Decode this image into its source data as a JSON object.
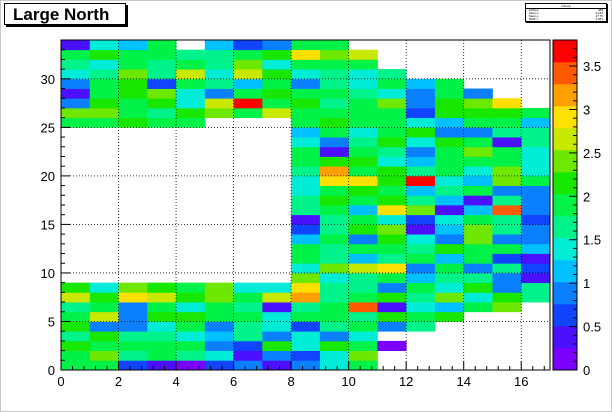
{
  "title": "Large North",
  "stats": {
    "title": "hitmap",
    "rows": [
      {
        "label": "Entries",
        "value": "489"
      },
      {
        "label": "Mean x",
        "value": "9.154"
      },
      {
        "label": "Mean y",
        "value": "17.75"
      },
      {
        "label": "RMS x",
        "value": "4.981"
      },
      {
        "label": "RMS y",
        "value": "9.906"
      }
    ]
  },
  "colors": {
    "palette": [
      "#7a00ff",
      "#4a10ff",
      "#1044ff",
      "#0a80ff",
      "#00c0ff",
      "#00ecd6",
      "#00f28a",
      "#00f248",
      "#18e800",
      "#6ee800",
      "#c8e800",
      "#ffe000",
      "#ffa000",
      "#ff5a00",
      "#ff0000"
    ],
    "frame": "#000000",
    "grid": "#000000"
  },
  "chart_data": {
    "type": "heatmap",
    "title": "Large North",
    "xlabel": "",
    "ylabel": "",
    "xlim": [
      0,
      17
    ],
    "ylim": [
      0,
      34
    ],
    "zlim": [
      0,
      3.8
    ],
    "x_ticks": [
      0,
      2,
      4,
      6,
      8,
      10,
      12,
      14,
      16
    ],
    "y_ticks": [
      0,
      5,
      10,
      15,
      20,
      25,
      30
    ],
    "z_ticks": [
      0,
      0.5,
      1,
      1.5,
      2,
      2.5,
      3,
      3.5
    ],
    "grid": true,
    "colorbar": "right",
    "z": [
      [
        1.9,
        1.8,
        0.6,
        0.5,
        0.2,
        0.7,
        0.8,
        0.3,
        0.8,
        1.5,
        1.9,
        null,
        null,
        null,
        null,
        null,
        null
      ],
      [
        1.8,
        2.3,
        1.6,
        1.9,
        1.7,
        1.5,
        0.5,
        0.8,
        0.6,
        1.3,
        2.4,
        null,
        null,
        null,
        null,
        null,
        null
      ],
      [
        2.1,
        1.9,
        1.8,
        2.0,
        1.8,
        0.8,
        0.6,
        2.1,
        1.5,
        2.2,
        1.8,
        0.2,
        null,
        null,
        null,
        null,
        null
      ],
      [
        1.7,
        2.2,
        1.7,
        1.6,
        1.5,
        1.2,
        1.6,
        1.0,
        1.3,
        0.9,
        1.4,
        null,
        null,
        null,
        null,
        null,
        null
      ],
      [
        2.1,
        0.8,
        1.0,
        1.3,
        1.8,
        1.0,
        1.7,
        1.4,
        0.7,
        1.6,
        2.0,
        0.8,
        1.7,
        null,
        null,
        null,
        null
      ],
      [
        2.0,
        2.6,
        1.0,
        2.2,
        2.2,
        1.9,
        1.8,
        1.5,
        1.8,
        2.0,
        1.7,
        2.2,
        2.0,
        2.2,
        null,
        null,
        null
      ],
      [
        1.6,
        1.9,
        0.8,
        1.8,
        1.3,
        1.8,
        1.7,
        0.5,
        1.6,
        1.8,
        3.5,
        0.5,
        1.4,
        1.2,
        1.8,
        2.4,
        null
      ],
      [
        2.6,
        2.2,
        2.9,
        2.7,
        2.1,
        2.5,
        2.0,
        2.7,
        3.2,
        1.6,
        1.9,
        2.2,
        1.7,
        2.3,
        1.3,
        2.2,
        1.6
      ],
      [
        2.1,
        1.3,
        2.4,
        2.2,
        2.0,
        2.3,
        1.3,
        1.4,
        2.8,
        1.6,
        1.7,
        0.8,
        1.8,
        1.5,
        2.1,
        1.0,
        1.6
      ],
      [
        null,
        null,
        null,
        null,
        null,
        null,
        null,
        null,
        2.3,
        1.5,
        1.6,
        1.8,
        1.2,
        1.6,
        1.7,
        0.8,
        0.5
      ],
      [
        null,
        null,
        null,
        null,
        null,
        null,
        null,
        null,
        1.4,
        2.4,
        2.6,
        2.8,
        1.0,
        2.0,
        0.9,
        1.7,
        0.6
      ],
      [
        null,
        null,
        null,
        null,
        null,
        null,
        null,
        null,
        2.0,
        1.7,
        1.2,
        1.7,
        2.0,
        1.2,
        2.0,
        0.6,
        0.5
      ],
      [
        null,
        null,
        null,
        null,
        null,
        null,
        null,
        null,
        1.8,
        1.6,
        1.9,
        1.8,
        1.7,
        2.2,
        1.9,
        2.0,
        1.2
      ],
      [
        null,
        null,
        null,
        null,
        null,
        null,
        null,
        null,
        1.2,
        1.8,
        1.0,
        2.2,
        1.5,
        1.0,
        2.3,
        0.9,
        1.0
      ],
      [
        null,
        null,
        null,
        null,
        null,
        null,
        null,
        null,
        0.6,
        1.7,
        2.1,
        2.4,
        0.5,
        1.2,
        2.4,
        1.6,
        0.9
      ],
      [
        null,
        null,
        null,
        null,
        null,
        null,
        null,
        null,
        0.4,
        1.7,
        1.8,
        1.5,
        0.6,
        1.3,
        1.9,
        1.7,
        0.6
      ],
      [
        null,
        null,
        null,
        null,
        null,
        null,
        null,
        null,
        1.7,
        2.0,
        1.1,
        2.8,
        2.5,
        0.4,
        1.2,
        3.5,
        1.0
      ],
      [
        null,
        null,
        null,
        null,
        null,
        null,
        null,
        null,
        1.6,
        2.1,
        1.8,
        2.1,
        1.7,
        1.2,
        0.4,
        1.7,
        1.0
      ],
      [
        null,
        null,
        null,
        null,
        null,
        null,
        null,
        null,
        1.3,
        1.9,
        2.1,
        2.0,
        1.2,
        1.6,
        2.0,
        0.9,
        1.0
      ],
      [
        null,
        null,
        null,
        null,
        null,
        null,
        null,
        null,
        1.5,
        2.9,
        3.0,
        2.2,
        3.6,
        1.4,
        1.1,
        2.5,
        2.0
      ],
      [
        null,
        null,
        null,
        null,
        null,
        null,
        null,
        null,
        1.7,
        3.2,
        2.0,
        2.2,
        1.7,
        2.0,
        1.4,
        2.3,
        1.3
      ],
      [
        null,
        null,
        null,
        null,
        null,
        null,
        null,
        null,
        1.8,
        2.1,
        2.1,
        1.4,
        1.2,
        1.8,
        2.0,
        1.8,
        1.3
      ],
      [
        null,
        null,
        null,
        null,
        null,
        null,
        null,
        null,
        1.9,
        0.4,
        1.9,
        1.6,
        1.0,
        1.9,
        2.4,
        2.0,
        1.4
      ],
      [
        null,
        null,
        null,
        null,
        null,
        null,
        null,
        null,
        1.5,
        0.8,
        1.6,
        2.2,
        1.5,
        2.2,
        1.9,
        0.5,
        1.6
      ],
      [
        null,
        null,
        null,
        null,
        null,
        null,
        null,
        null,
        1.2,
        2.0,
        1.4,
        1.8,
        2.1,
        1.0,
        1.0,
        1.7,
        1.7
      ],
      [
        2.0,
        1.8,
        2.2,
        2.0,
        1.9,
        null,
        null,
        null,
        1.8,
        2.1,
        2.0,
        1.9,
        1.3,
        1.2,
        1.8,
        2.0,
        1.2
      ],
      [
        2.4,
        2.4,
        2.0,
        1.6,
        2.2,
        2.3,
        1.8,
        2.6,
        2.0,
        2.0,
        1.9,
        1.9,
        0.7,
        2.1,
        2.2,
        2.2,
        2.0
      ],
      [
        0.8,
        2.1,
        2.0,
        2.1,
        1.5,
        2.6,
        3.6,
        2.0,
        2.2,
        1.6,
        1.9,
        2.3,
        0.8,
        2.1,
        2.4,
        2.8,
        null
      ],
      [
        0.4,
        1.9,
        2.2,
        2.3,
        1.3,
        1.0,
        2.0,
        2.1,
        1.9,
        2.0,
        1.6,
        1.4,
        0.9,
        1.8,
        1.0,
        null,
        null
      ],
      [
        0.8,
        2.0,
        2.2,
        0.7,
        1.9,
        1.6,
        1.2,
        1.9,
        0.8,
        1.7,
        1.4,
        1.8,
        1.1,
        2.0,
        null,
        null,
        null
      ],
      [
        1.3,
        1.7,
        2.4,
        1.6,
        2.7,
        1.4,
        2.6,
        2.1,
        1.4,
        1.7,
        1.3,
        1.6,
        null,
        null,
        null,
        null,
        null
      ],
      [
        1.6,
        1.4,
        2.0,
        1.6,
        1.9,
        1.7,
        2.3,
        1.5,
        1.8,
        1.9,
        2.0,
        null,
        null,
        null,
        null,
        null,
        null
      ],
      [
        1.9,
        2.2,
        1.8,
        2.0,
        1.7,
        1.6,
        2.0,
        2.2,
        2.9,
        2.5,
        2.7,
        null,
        null,
        null,
        null,
        null,
        null
      ],
      [
        0.4,
        1.5,
        1.1,
        2.0,
        null,
        1.1,
        0.6,
        0.8,
        1.8,
        1.9,
        null,
        null,
        null,
        null,
        null,
        null,
        null
      ]
    ]
  }
}
